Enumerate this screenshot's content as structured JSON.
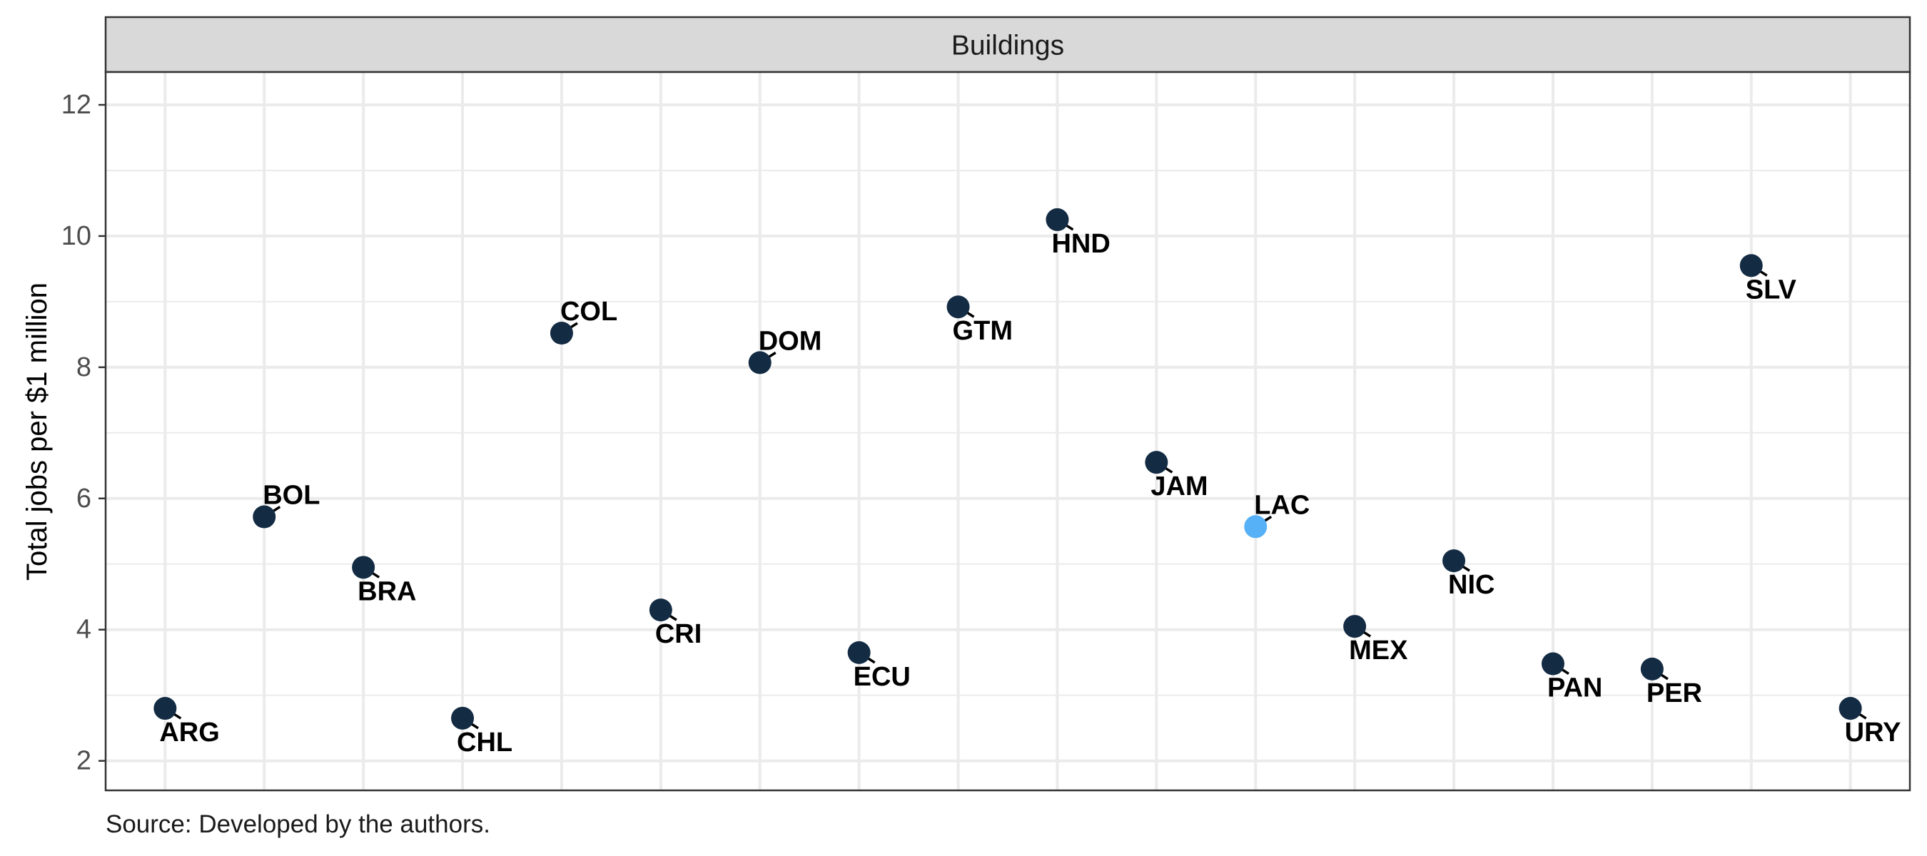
{
  "chart_data": {
    "type": "scatter",
    "facet_title": "Buildings",
    "ylabel": "Total jobs per $1 million",
    "xlabel": "",
    "ylim": [
      1.55,
      12.5
    ],
    "y_ticks": [
      2,
      4,
      6,
      8,
      10,
      12
    ],
    "grid": true,
    "categories": [
      "ARG",
      "BOL",
      "BRA",
      "CHL",
      "COL",
      "CRI",
      "DOM",
      "ECU",
      "GTM",
      "HND",
      "JAM",
      "LAC",
      "MEX",
      "NIC",
      "PAN",
      "PER",
      "SLV",
      "URY"
    ],
    "points": [
      {
        "label": "ARG",
        "y": 2.8,
        "label_pos": "below"
      },
      {
        "label": "BOL",
        "y": 5.72,
        "label_pos": "above"
      },
      {
        "label": "BRA",
        "y": 4.95,
        "label_pos": "below"
      },
      {
        "label": "CHL",
        "y": 2.65,
        "label_pos": "below"
      },
      {
        "label": "COL",
        "y": 8.52,
        "label_pos": "above"
      },
      {
        "label": "CRI",
        "y": 4.3,
        "label_pos": "below"
      },
      {
        "label": "DOM",
        "y": 8.07,
        "label_pos": "above"
      },
      {
        "label": "ECU",
        "y": 3.65,
        "label_pos": "below"
      },
      {
        "label": "GTM",
        "y": 8.92,
        "label_pos": "below"
      },
      {
        "label": "HND",
        "y": 10.25,
        "label_pos": "below"
      },
      {
        "label": "JAM",
        "y": 6.55,
        "label_pos": "below"
      },
      {
        "label": "LAC",
        "y": 5.57,
        "label_pos": "above",
        "highlight": true
      },
      {
        "label": "MEX",
        "y": 4.05,
        "label_pos": "below"
      },
      {
        "label": "NIC",
        "y": 5.05,
        "label_pos": "below"
      },
      {
        "label": "PAN",
        "y": 3.48,
        "label_pos": "below"
      },
      {
        "label": "PER",
        "y": 3.4,
        "label_pos": "below"
      },
      {
        "label": "SLV",
        "y": 9.55,
        "label_pos": "below"
      },
      {
        "label": "URY",
        "y": 2.8,
        "label_pos": "below"
      }
    ],
    "colors": {
      "point": "#132b43",
      "highlight": "#56b1f7",
      "strip_fill": "#d9d9d9",
      "grid": "#ebebeb",
      "frame": "#333333"
    }
  },
  "caption": "Source: Developed by the authors."
}
